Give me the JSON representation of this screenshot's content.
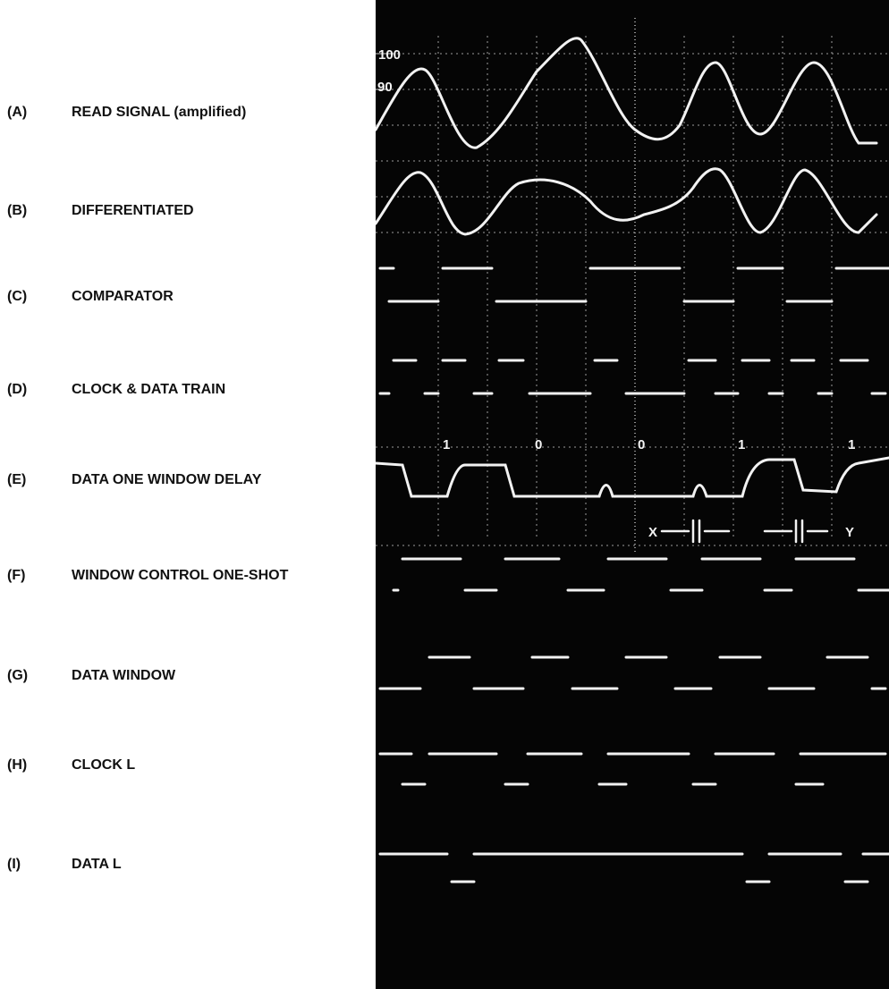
{
  "labels": [
    {
      "letter": "(A)",
      "text": "READ SIGNAL (amplified)"
    },
    {
      "letter": "(B)",
      "text": "DIFFERENTIATED"
    },
    {
      "letter": "(C)",
      "text": "COMPARATOR"
    },
    {
      "letter": "(D)",
      "text": "CLOCK & DATA TRAIN"
    },
    {
      "letter": "(E)",
      "text": "DATA ONE WINDOW DELAY"
    },
    {
      "letter": "(F)",
      "text": "WINDOW CONTROL ONE-SHOT"
    },
    {
      "letter": "(G)",
      "text": "DATA WINDOW"
    },
    {
      "letter": "(H)",
      "text": "CLOCK L"
    },
    {
      "letter": "(I)",
      "text": "DATA L"
    }
  ],
  "scope": {
    "graticule_labels": [
      "100",
      "90"
    ],
    "bits": [
      "1",
      "0",
      "0",
      "1",
      "1"
    ],
    "markers": [
      "X",
      "Y"
    ]
  }
}
